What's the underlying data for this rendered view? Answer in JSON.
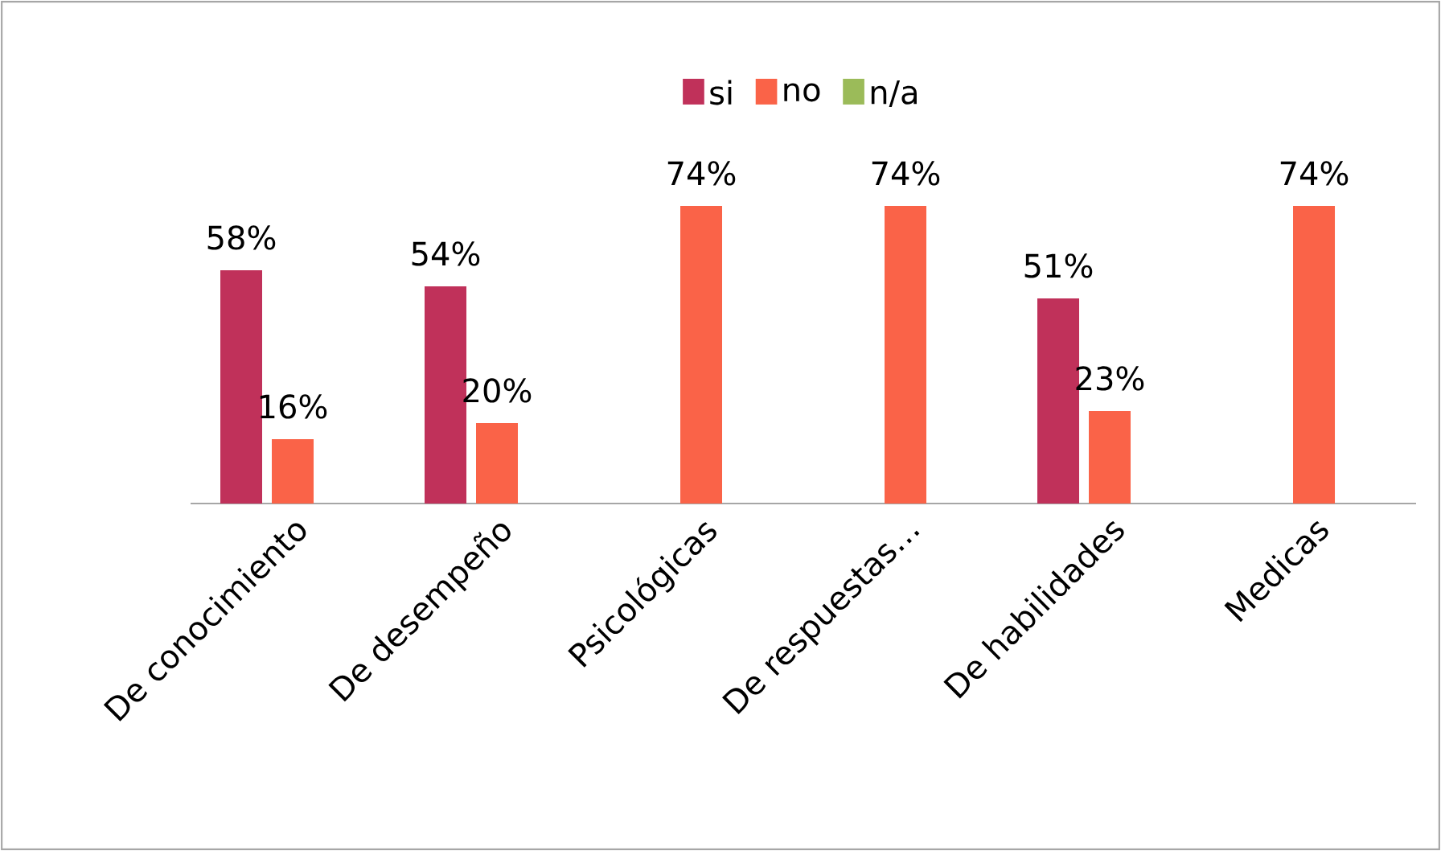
{
  "chart_data": {
    "type": "bar",
    "categories": [
      "De conocimiento",
      "De desempeño",
      "Psicológicas",
      "De respuestas…",
      "De habilidades",
      "Medicas"
    ],
    "series": [
      {
        "name": "si",
        "color": "#c0315a",
        "values": [
          58,
          54,
          null,
          null,
          51,
          null
        ],
        "value_labels": [
          "58%",
          "54%",
          null,
          null,
          "51%",
          null
        ]
      },
      {
        "name": "no",
        "color": "#fa6348",
        "values": [
          16,
          20,
          74,
          74,
          23,
          74
        ],
        "value_labels": [
          "16%",
          "20%",
          "74%",
          "74%",
          "23%",
          "74%"
        ]
      },
      {
        "name": "n/a",
        "color": "#9bbb59",
        "values": [
          null,
          null,
          null,
          null,
          null,
          null
        ]
      }
    ],
    "legend": "top",
    "tick_labels": "x"
  }
}
